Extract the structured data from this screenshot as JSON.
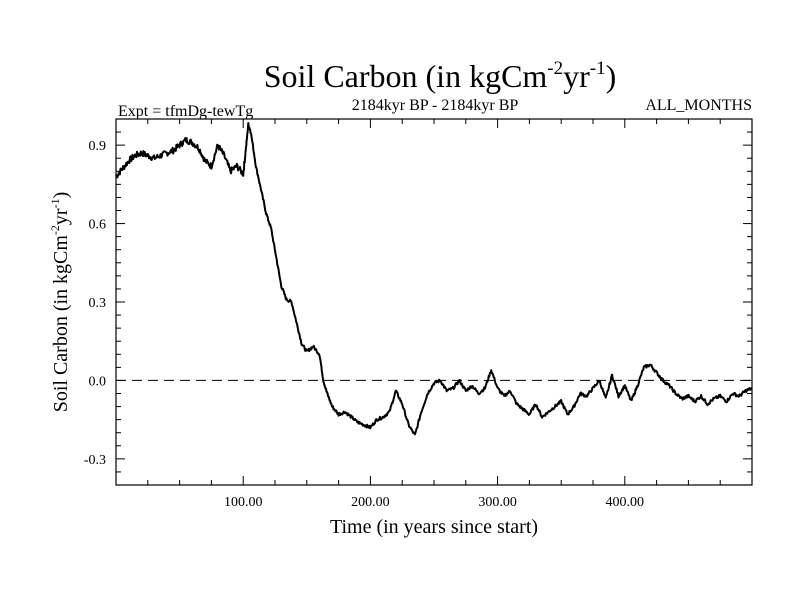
{
  "chart_data": {
    "type": "line",
    "title": "Soil Carbon (in kgCm",
    "title_sup1": "-2",
    "title_mid": "yr",
    "title_sup2": "-1",
    "title_end": ")",
    "expt_label": "Expt = tfmDg-tewTg",
    "period_label": "2184kyr BP - 2184kyr BP",
    "months_label": "ALL_MONTHS",
    "xlabel": "Time (in years since start)",
    "ylabel_main": "Soil Carbon (in kgCm",
    "ylabel_sup1": "-2",
    "ylabel_mid": "yr",
    "ylabel_sup2": "-1",
    "ylabel_end": ")",
    "xlim": [
      0,
      500
    ],
    "ylim": [
      -0.4,
      1.0
    ],
    "x_ticks": [
      100,
      200,
      300,
      400
    ],
    "x_tick_labels": [
      "100.00",
      "200.00",
      "300.00",
      "400.00"
    ],
    "y_ticks": [
      -0.3,
      0.0,
      0.3,
      0.6,
      0.9
    ],
    "y_tick_labels": [
      "-0.3",
      "0.0",
      "0.3",
      "0.6",
      "0.9"
    ],
    "zero_line": 0.0,
    "series": [
      {
        "name": "Soil Carbon",
        "x": [
          0,
          5,
          10,
          15,
          20,
          25,
          30,
          35,
          40,
          45,
          50,
          55,
          60,
          65,
          70,
          75,
          80,
          85,
          90,
          95,
          100,
          102,
          104,
          106,
          110,
          114,
          118,
          122,
          126,
          130,
          134,
          138,
          142,
          146,
          150,
          155,
          160,
          163,
          166,
          170,
          175,
          180,
          185,
          190,
          195,
          200,
          205,
          210,
          215,
          220,
          225,
          230,
          235,
          240,
          245,
          250,
          255,
          260,
          265,
          270,
          275,
          280,
          285,
          290,
          295,
          300,
          305,
          310,
          315,
          320,
          325,
          330,
          335,
          340,
          345,
          350,
          355,
          360,
          365,
          370,
          375,
          380,
          385,
          390,
          395,
          400,
          405,
          410,
          415,
          420,
          425,
          430,
          435,
          440,
          445,
          450,
          455,
          460,
          465,
          470,
          475,
          480,
          485,
          490,
          495,
          500
        ],
        "y": [
          0.78,
          0.81,
          0.84,
          0.86,
          0.87,
          0.86,
          0.85,
          0.86,
          0.87,
          0.88,
          0.9,
          0.92,
          0.91,
          0.89,
          0.84,
          0.82,
          0.9,
          0.86,
          0.8,
          0.82,
          0.79,
          0.88,
          0.98,
          0.95,
          0.82,
          0.73,
          0.64,
          0.58,
          0.47,
          0.36,
          0.31,
          0.3,
          0.22,
          0.14,
          0.11,
          0.13,
          0.1,
          0.0,
          -0.05,
          -0.1,
          -0.13,
          -0.12,
          -0.14,
          -0.16,
          -0.17,
          -0.18,
          -0.15,
          -0.14,
          -0.12,
          -0.04,
          -0.09,
          -0.17,
          -0.21,
          -0.12,
          -0.05,
          -0.01,
          0.0,
          -0.04,
          -0.03,
          0.0,
          -0.04,
          -0.02,
          -0.05,
          -0.03,
          0.04,
          -0.03,
          -0.06,
          -0.04,
          -0.09,
          -0.11,
          -0.13,
          -0.09,
          -0.14,
          -0.12,
          -0.1,
          -0.08,
          -0.13,
          -0.1,
          -0.05,
          -0.06,
          -0.03,
          0.0,
          -0.07,
          0.02,
          -0.06,
          -0.02,
          -0.08,
          -0.02,
          0.05,
          0.06,
          0.03,
          0.0,
          -0.02,
          -0.05,
          -0.07,
          -0.06,
          -0.08,
          -0.06,
          -0.09,
          -0.07,
          -0.06,
          -0.08,
          -0.05,
          -0.06,
          -0.04,
          -0.03
        ]
      }
    ]
  }
}
